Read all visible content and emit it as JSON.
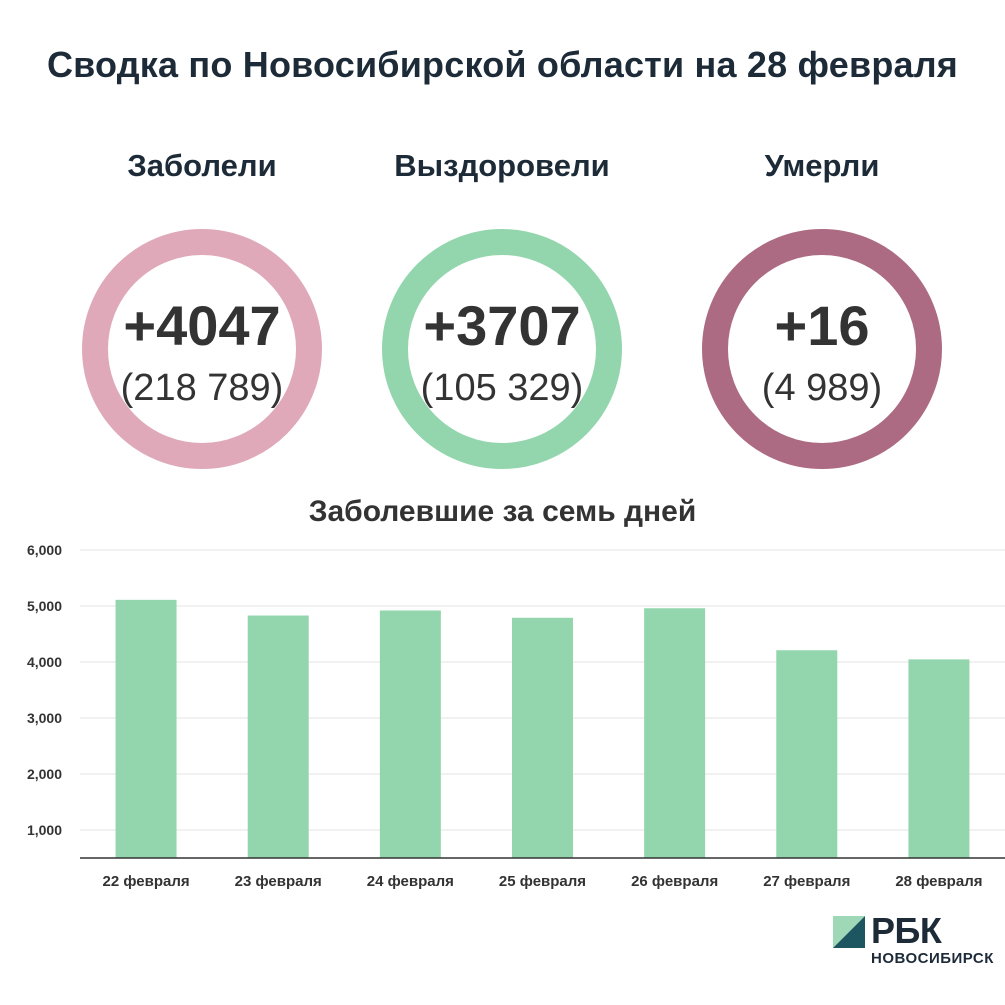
{
  "title": "Сводка по Новосибирской области на 28 февраля",
  "stats": [
    {
      "label": "Заболели",
      "new": "+4047",
      "total": "(218 789)",
      "color": "#dfa9b9"
    },
    {
      "label": "Выздоровели",
      "new": "+3707",
      "total": "(105 329)",
      "color": "#93d6ad"
    },
    {
      "label": "Умерли",
      "new": "+16",
      "total": "(4 989)",
      "color": "#ac6b82"
    }
  ],
  "chart_data": {
    "type": "bar",
    "title": "Заболевшие за семь дней",
    "categories": [
      "22 февраля",
      "23 февраля",
      "24 февраля",
      "25 февраля",
      "26 февраля",
      "27 февраля",
      "28 февраля"
    ],
    "values": [
      5110,
      4830,
      4920,
      4790,
      4960,
      4210,
      4047
    ],
    "ylim": [
      500,
      6000
    ],
    "yticks": [
      1000,
      2000,
      3000,
      4000,
      5000,
      6000
    ],
    "ytick_labels": [
      "1,000",
      "2,000",
      "3,000",
      "4,000",
      "5,000",
      "6,000"
    ],
    "grid": true,
    "bar_color": "#93d6ad"
  },
  "logo": {
    "name": "РБК",
    "region": "НОВОСИБИРСК"
  }
}
